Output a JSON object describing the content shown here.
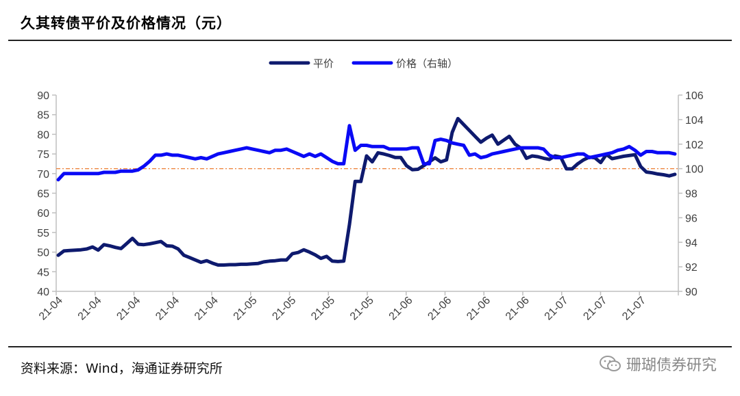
{
  "header": {
    "title": "久其转债平价及价格情况（元）"
  },
  "footer": {
    "source": "资料来源：Wind，海通证券研究所",
    "watermark": "珊瑚债券研究"
  },
  "chart_data": {
    "type": "line",
    "legend_position": "top-center",
    "grid": false,
    "y_left": {
      "ylim": [
        40,
        90
      ],
      "ticks": [
        40,
        45,
        50,
        55,
        60,
        65,
        70,
        75,
        80,
        85,
        90
      ]
    },
    "y_right": {
      "ylim": [
        90,
        106
      ],
      "ticks": [
        90,
        92,
        94,
        96,
        98,
        100,
        102,
        104,
        106
      ]
    },
    "x_ticks": [
      "21-04",
      "21-04",
      "21-04",
      "21-04",
      "21-04",
      "21-05",
      "21-05",
      "21-05",
      "21-05",
      "21-06",
      "21-06",
      "21-06",
      "21-06",
      "21-07",
      "21-07",
      "21-07"
    ],
    "reference_line": {
      "axis": "right",
      "value": 100,
      "color": "#ed7d31"
    },
    "series": [
      {
        "name": "平价",
        "axis": "left",
        "color": "#0e1a6e",
        "values": [
          49.2,
          50.3,
          50.4,
          50.5,
          50.6,
          50.8,
          51.3,
          50.5,
          51.9,
          51.6,
          51.2,
          50.9,
          52.2,
          53.5,
          52.0,
          51.9,
          52.1,
          52.4,
          52.7,
          51.6,
          51.5,
          50.8,
          49.2,
          48.6,
          48.0,
          47.4,
          47.8,
          47.2,
          46.7,
          46.7,
          46.8,
          46.8,
          46.9,
          46.9,
          47.0,
          47.1,
          47.5,
          47.7,
          47.8,
          48.0,
          48.0,
          49.6,
          49.9,
          50.6,
          50.0,
          49.3,
          48.4,
          48.9,
          47.7,
          47.6,
          47.7,
          57.0,
          68.0,
          68.0,
          74.5,
          73.0,
          75.3,
          75.0,
          74.6,
          74.1,
          74.1,
          72.0,
          71.0,
          71.1,
          72.0,
          73.0,
          74.0,
          73.0,
          73.5,
          80.5,
          84.0,
          82.5,
          81.0,
          79.5,
          78.0,
          79.0,
          79.8,
          77.5,
          78.5,
          79.5,
          77.5,
          76.5,
          73.9,
          74.5,
          74.3,
          73.9,
          73.6,
          74.5,
          74.2,
          71.2,
          71.2,
          72.5,
          73.5,
          74.2,
          74.0,
          72.8,
          74.9,
          73.8,
          74.1,
          74.4,
          74.6,
          74.8,
          71.8,
          70.4,
          70.2,
          69.9,
          69.7,
          69.4,
          69.8
        ]
      },
      {
        "name": "价格（右轴）",
        "axis": "right",
        "color": "#0a0af5",
        "values": [
          99.1,
          99.6,
          99.6,
          99.6,
          99.6,
          99.6,
          99.6,
          99.6,
          99.7,
          99.7,
          99.7,
          99.8,
          99.8,
          99.8,
          99.9,
          100.2,
          100.6,
          101.1,
          101.1,
          101.2,
          101.1,
          101.1,
          101.0,
          100.9,
          100.8,
          100.9,
          100.8,
          101.0,
          101.2,
          101.3,
          101.4,
          101.5,
          101.6,
          101.7,
          101.6,
          101.5,
          101.4,
          101.3,
          101.5,
          101.5,
          101.6,
          101.4,
          101.2,
          101.0,
          101.2,
          101.0,
          101.2,
          100.9,
          100.6,
          100.4,
          100.4,
          103.5,
          101.5,
          101.9,
          101.9,
          101.8,
          101.8,
          101.8,
          101.6,
          101.6,
          101.6,
          101.6,
          101.7,
          101.7,
          100.4,
          100.4,
          102.3,
          102.4,
          102.3,
          102.1,
          102.0,
          101.9,
          101.1,
          101.2,
          100.9,
          101.0,
          101.2,
          101.3,
          101.4,
          101.5,
          101.6,
          101.7,
          101.7,
          101.7,
          101.7,
          101.6,
          101.1,
          100.9,
          100.9,
          101.0,
          101.1,
          101.2,
          101.2,
          100.9,
          101.0,
          101.1,
          101.2,
          101.3,
          101.5,
          101.6,
          101.8,
          101.5,
          101.1,
          101.4,
          101.4,
          101.3,
          101.3,
          101.3,
          101.2
        ]
      }
    ]
  }
}
